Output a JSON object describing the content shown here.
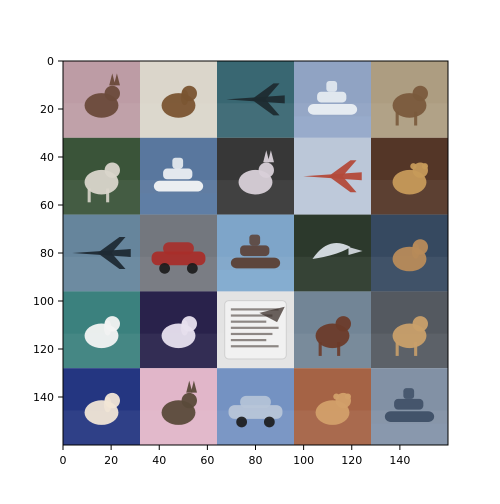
{
  "figure": {
    "background": "#ffffff",
    "grid": {
      "rows": 5,
      "cols": 5,
      "tile_size_px_units": 32,
      "image_extent": [
        0,
        160
      ]
    },
    "x_ticks": [
      "0",
      "20",
      "40",
      "60",
      "80",
      "100",
      "120",
      "140"
    ],
    "y_ticks": [
      "0",
      "20",
      "40",
      "60",
      "80",
      "100",
      "120",
      "140"
    ],
    "tiles": [
      {
        "row": 0,
        "col": 0,
        "subject": "cat",
        "icon": "cat-icon",
        "bg": "#c9a6b0",
        "fg": "#6a4a3a"
      },
      {
        "row": 0,
        "col": 1,
        "subject": "dog-in-basket",
        "icon": "dog-icon",
        "bg": "#e9e4d8",
        "fg": "#7a5430"
      },
      {
        "row": 0,
        "col": 2,
        "subject": "airplane",
        "icon": "airplane-icon",
        "bg": "#3d6e7a",
        "fg": "#1e2b30"
      },
      {
        "row": 0,
        "col": 3,
        "subject": "ship",
        "icon": "ship-icon",
        "bg": "#9aaed0",
        "fg": "#e9eef3"
      },
      {
        "row": 0,
        "col": 4,
        "subject": "deer",
        "icon": "deer-icon",
        "bg": "#b8a78a",
        "fg": "#7a5a3c"
      },
      {
        "row": 1,
        "col": 0,
        "subject": "horse",
        "icon": "horse-icon",
        "bg": "#3e5a3d",
        "fg": "#d9d5cb"
      },
      {
        "row": 1,
        "col": 1,
        "subject": "ship",
        "icon": "ship-icon",
        "bg": "#5f7fa8",
        "fg": "#f2f4f6"
      },
      {
        "row": 1,
        "col": 2,
        "subject": "cat",
        "icon": "cat-icon",
        "bg": "#3b3b3b",
        "fg": "#d8d0d8"
      },
      {
        "row": 1,
        "col": 3,
        "subject": "airplane",
        "icon": "airplane-icon",
        "bg": "#c7d4e6",
        "fg": "#b34a3a"
      },
      {
        "row": 1,
        "col": 4,
        "subject": "frog",
        "icon": "frog-icon",
        "bg": "#5a3a2a",
        "fg": "#c69a5a"
      },
      {
        "row": 2,
        "col": 0,
        "subject": "airplane",
        "icon": "airplane-icon",
        "bg": "#6d8ea6",
        "fg": "#1f2a34"
      },
      {
        "row": 2,
        "col": 1,
        "subject": "truck",
        "icon": "truck-icon",
        "bg": "#7b7f86",
        "fg": "#a82e2a"
      },
      {
        "row": 2,
        "col": 2,
        "subject": "ship",
        "icon": "ship-icon",
        "bg": "#86b0d6",
        "fg": "#5b3f34"
      },
      {
        "row": 2,
        "col": 3,
        "subject": "bird",
        "icon": "bird-icon",
        "bg": "#2f3d2f",
        "fg": "#d9dfe6"
      },
      {
        "row": 2,
        "col": 4,
        "subject": "dog",
        "icon": "dog-icon",
        "bg": "#3a4e66",
        "fg": "#b88b5a"
      },
      {
        "row": 3,
        "col": 0,
        "subject": "dog",
        "icon": "dog-icon",
        "bg": "#3f8a86",
        "fg": "#f3f3f3"
      },
      {
        "row": 3,
        "col": 1,
        "subject": "dog",
        "icon": "dog-icon",
        "bg": "#2c2550",
        "fg": "#e8e2ef"
      },
      {
        "row": 3,
        "col": 2,
        "subject": "document-photo",
        "icon": "document-icon",
        "bg": "#f2f2f2",
        "fg": "#3b2f2a"
      },
      {
        "row": 3,
        "col": 3,
        "subject": "horse",
        "icon": "horse-icon",
        "bg": "#7a8ea0",
        "fg": "#6b3b2a"
      },
      {
        "row": 3,
        "col": 4,
        "subject": "horse",
        "icon": "horse-icon",
        "bg": "#5a5f66",
        "fg": "#c9a06a"
      },
      {
        "row": 4,
        "col": 0,
        "subject": "dog",
        "icon": "dog-icon",
        "bg": "#273a8a",
        "fg": "#f1e6d6"
      },
      {
        "row": 4,
        "col": 1,
        "subject": "cat",
        "icon": "cat-icon",
        "bg": "#f0c2d6",
        "fg": "#5a4a3a"
      },
      {
        "row": 4,
        "col": 2,
        "subject": "car",
        "icon": "car-icon",
        "bg": "#7c9ccf",
        "fg": "#b7c5d8"
      },
      {
        "row": 4,
        "col": 3,
        "subject": "frog",
        "icon": "frog-icon",
        "bg": "#b06a4a",
        "fg": "#d2a06a"
      },
      {
        "row": 4,
        "col": 4,
        "subject": "ship",
        "icon": "ship-icon",
        "bg": "#8b9bb0",
        "fg": "#3e4f66"
      }
    ]
  }
}
